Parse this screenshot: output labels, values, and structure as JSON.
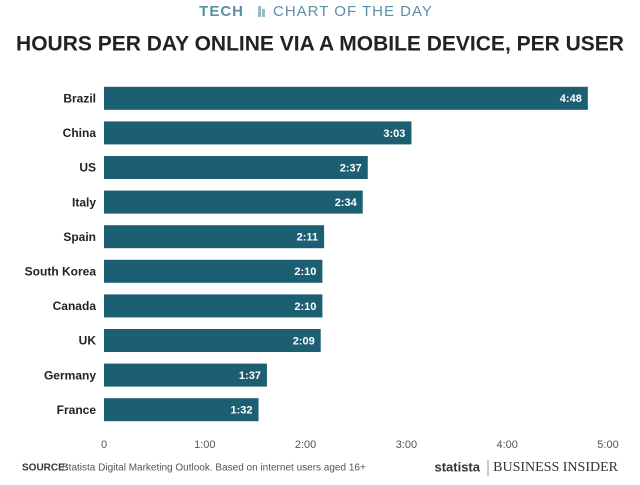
{
  "header": {
    "brand": "TECH",
    "section": "CHART OF THE DAY"
  },
  "chart_data": {
    "type": "bar",
    "orientation": "horizontal",
    "title": "HOURS PER DAY ONLINE VIA A MOBILE DEVICE, PER USER",
    "categories": [
      "Brazil",
      "China",
      "US",
      "Italy",
      "Spain",
      "South Korea",
      "Canada",
      "UK",
      "Germany",
      "France"
    ],
    "values": [
      288,
      183,
      157,
      154,
      131,
      130,
      130,
      129,
      97,
      92
    ],
    "value_labels": [
      "4:48",
      "3:03",
      "2:37",
      "2:34",
      "2:11",
      "2:10",
      "2:10",
      "2:09",
      "1:37",
      "1:32"
    ],
    "color": "#1c5e72",
    "xlim": [
      0,
      300
    ],
    "xticks": [
      0,
      {
        "value": 60,
        "label": "1:00"
      },
      {
        "value": 120,
        "label": "2:00"
      },
      {
        "value": 180,
        "label": "3:00"
      },
      {
        "value": 240,
        "label": "4:00"
      },
      {
        "value": 300,
        "label": "5:00"
      }
    ],
    "grid": false
  },
  "footer": {
    "source_label": "SOURCE:",
    "source": "Statista Digital Marketing Outlook. Based on internet users aged 16+",
    "partner": "statista",
    "publisher": "BUSINESS INSIDER"
  }
}
